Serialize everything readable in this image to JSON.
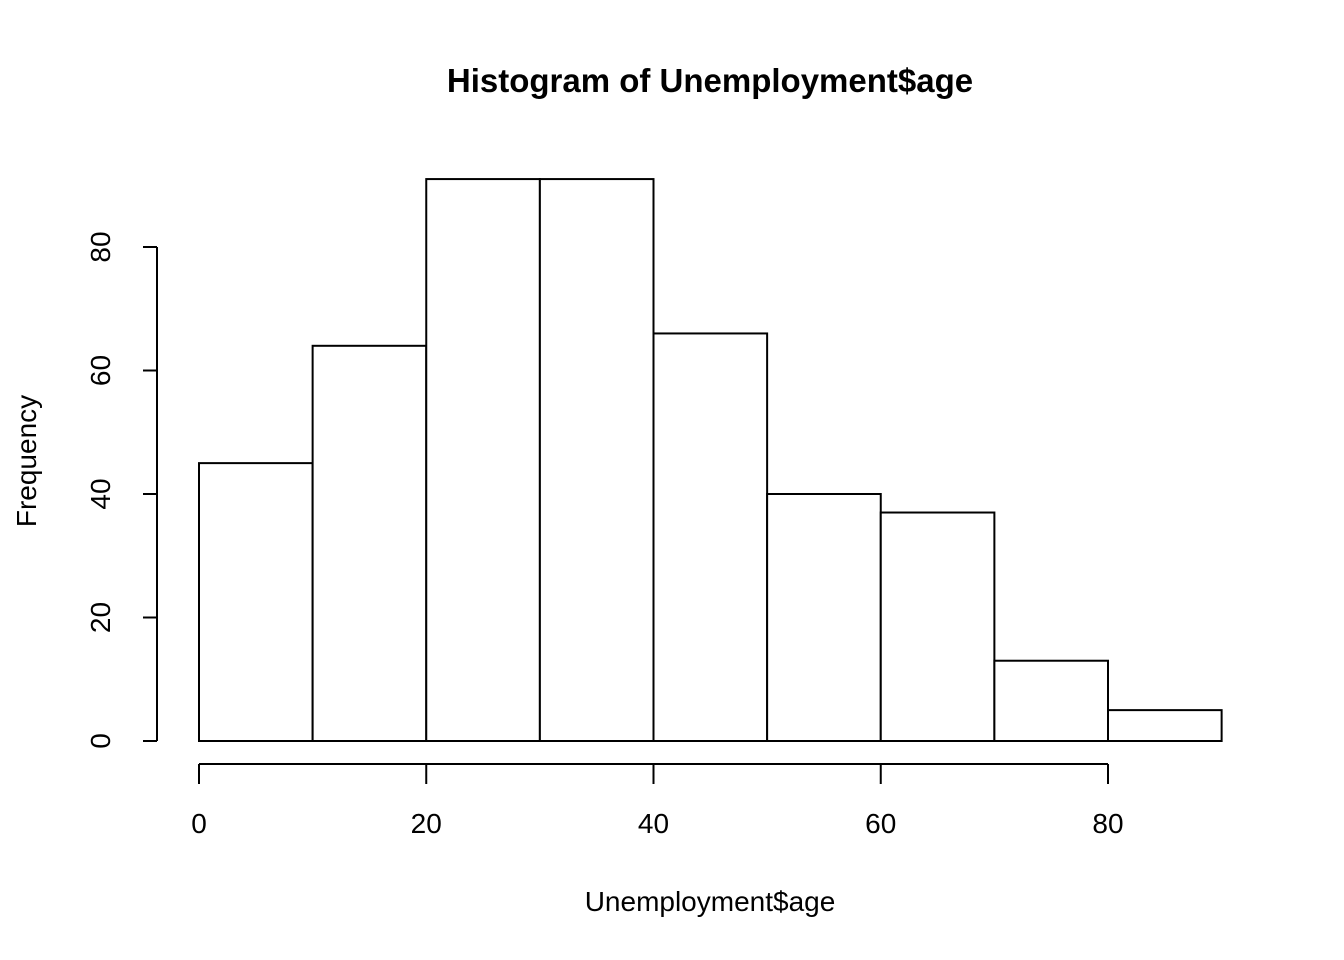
{
  "chart_data": {
    "type": "bar",
    "title": "Histogram of Unemployment$age",
    "xlabel": "Unemployment$age",
    "ylabel": "Frequency",
    "bins": [
      {
        "start": 0,
        "end": 10,
        "count": 45
      },
      {
        "start": 10,
        "end": 20,
        "count": 64
      },
      {
        "start": 20,
        "end": 30,
        "count": 91
      },
      {
        "start": 30,
        "end": 40,
        "count": 91
      },
      {
        "start": 40,
        "end": 50,
        "count": 66
      },
      {
        "start": 50,
        "end": 60,
        "count": 40
      },
      {
        "start": 60,
        "end": 70,
        "count": 37
      },
      {
        "start": 70,
        "end": 80,
        "count": 13
      },
      {
        "start": 80,
        "end": 90,
        "count": 5
      }
    ],
    "xlim": [
      0,
      90
    ],
    "ylim": [
      0,
      91
    ],
    "x_ticks": [
      0,
      20,
      40,
      60,
      80
    ],
    "y_ticks": [
      0,
      20,
      40,
      60,
      80
    ],
    "grid": false,
    "legend": "none",
    "colors": {
      "bar_fill": "#ffffff",
      "bar_stroke": "#000000",
      "text": "#000000",
      "background": "#ffffff"
    }
  }
}
